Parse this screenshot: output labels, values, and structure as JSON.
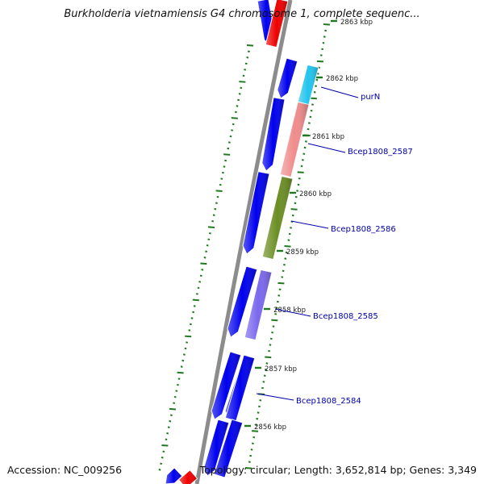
{
  "title": "Burkholderia vietnamiensis G4 chromosome 1, complete sequenc...",
  "footer": {
    "accession": "Accession: NC_009256",
    "topology": "Topology: circular; Length: 3,652,814 bp; Genes: 3,349"
  },
  "colors": {
    "backbone": "#8c8c8c",
    "ticks": "#1f7a1f",
    "cds": "#0000ee",
    "label": "#0000aa"
  },
  "ticks": [
    {
      "label": "2863 kbp"
    },
    {
      "label": "2862 kbp"
    },
    {
      "label": "2861 kbp"
    },
    {
      "label": "2860 kbp"
    },
    {
      "label": "2859 kbp"
    },
    {
      "label": "2858 kbp"
    },
    {
      "label": "2857 kbp"
    },
    {
      "label": "2856 kbp"
    }
  ],
  "gene_labels": [
    {
      "name": "purN"
    },
    {
      "name": "Bcep1808_2587"
    },
    {
      "name": "Bcep1808_2586"
    },
    {
      "name": "Bcep1808_2585"
    },
    {
      "name": "Bcep1808_2584"
    }
  ],
  "features": [
    {
      "track": "cds",
      "strand": "-",
      "color": "#0000ee"
    },
    {
      "track": "cds",
      "strand": "-",
      "color": "#0000ee"
    },
    {
      "track": "cds",
      "strand": "-",
      "color": "#0000ee"
    },
    {
      "track": "cds",
      "strand": "-",
      "color": "#0000ee"
    },
    {
      "track": "cds",
      "strand": "-",
      "color": "#0000ee"
    },
    {
      "track": "cds",
      "strand": "-",
      "color": "#0000ee"
    },
    {
      "track": "cds",
      "strand": "-",
      "color": "#0000ee"
    },
    {
      "track": "cds",
      "strand": "-",
      "color": "#0000ee"
    },
    {
      "track": "cds",
      "strand": "-",
      "color": "#0000ee"
    },
    {
      "track": "cds",
      "strand": "-",
      "color": "#0000ee"
    },
    {
      "track": "cog",
      "strand": "",
      "color": "#ee0000"
    },
    {
      "track": "cog",
      "strand": "",
      "color": "#ee0000"
    },
    {
      "track": "cog",
      "strand": "",
      "color": "#22c4ee"
    },
    {
      "track": "cog",
      "strand": "",
      "color": "#f08c8c"
    },
    {
      "track": "cog",
      "strand": "",
      "color": "#6b8e23"
    },
    {
      "track": "cog",
      "strand": "",
      "color": "#7b68ee"
    },
    {
      "track": "cog",
      "strand": "",
      "color": "#0000ee"
    },
    {
      "track": "cog",
      "strand": "",
      "color": "#0000ee"
    }
  ]
}
